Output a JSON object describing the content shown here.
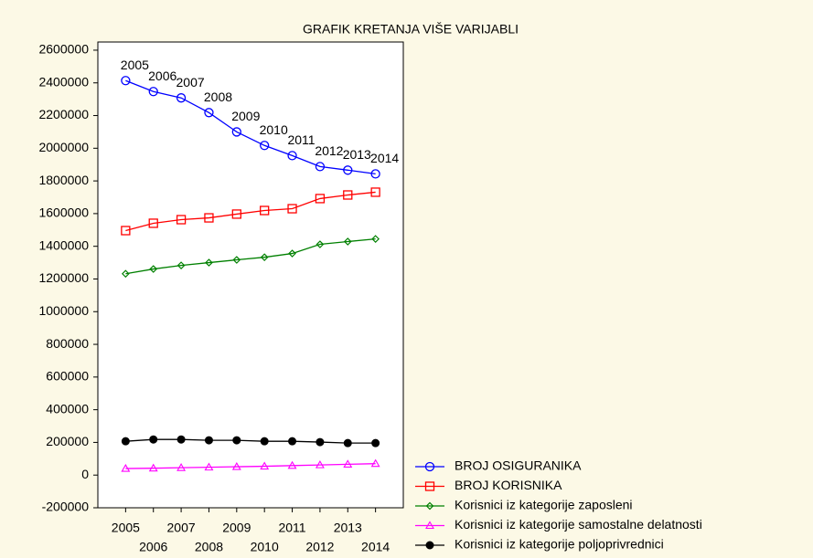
{
  "chart_data": {
    "type": "line",
    "title": "GRAFIK KRETANJA VIŠE VARIJABLI",
    "x": [
      2005,
      2006,
      2007,
      2008,
      2009,
      2010,
      2011,
      2012,
      2013,
      2014
    ],
    "xlim": [
      2004,
      2015
    ],
    "xticks": [
      2005,
      2006,
      2007,
      2008,
      2009,
      2010,
      2011,
      2012,
      2013,
      2014
    ],
    "ylim": [
      -200000,
      2650000
    ],
    "yticks": [
      -200000,
      0,
      200000,
      400000,
      600000,
      800000,
      1000000,
      1200000,
      1400000,
      1600000,
      1800000,
      2000000,
      2200000,
      2400000,
      2600000
    ],
    "grid": false,
    "legend": "bottom-right",
    "series": [
      {
        "name": "BROJ OSIGURANIKA",
        "color": "#0000ff",
        "marker": "circle",
        "show_x_labels": true,
        "values": [
          2414000,
          2347000,
          2308000,
          2218000,
          2100000,
          2017000,
          1955000,
          1888000,
          1866000,
          1843000
        ]
      },
      {
        "name": "BROJ KORISNIKA",
        "color": "#ff0000",
        "marker": "square",
        "values": [
          1496000,
          1541000,
          1563000,
          1574000,
          1597000,
          1619000,
          1630000,
          1692000,
          1714000,
          1731000
        ]
      },
      {
        "name": "Korisnici iz kategorije zaposleni",
        "color": "#008000",
        "marker": "diamond",
        "values": [
          1232000,
          1261000,
          1283000,
          1300000,
          1317000,
          1333000,
          1356000,
          1412000,
          1429000,
          1445000
        ]
      },
      {
        "name": "Korisnici iz kategorije samostalne delatnosti",
        "color": "#ff00ff",
        "marker": "triangle",
        "values": [
          40000,
          42000,
          45000,
          48000,
          51000,
          54000,
          58000,
          62000,
          66000,
          70000
        ]
      },
      {
        "name": "Korisnici iz kategorije poljoprivrednici",
        "color": "#000000",
        "marker": "dot",
        "values": [
          207000,
          218000,
          218000,
          213000,
          213000,
          207000,
          207000,
          202000,
          196000,
          196000
        ]
      }
    ]
  }
}
